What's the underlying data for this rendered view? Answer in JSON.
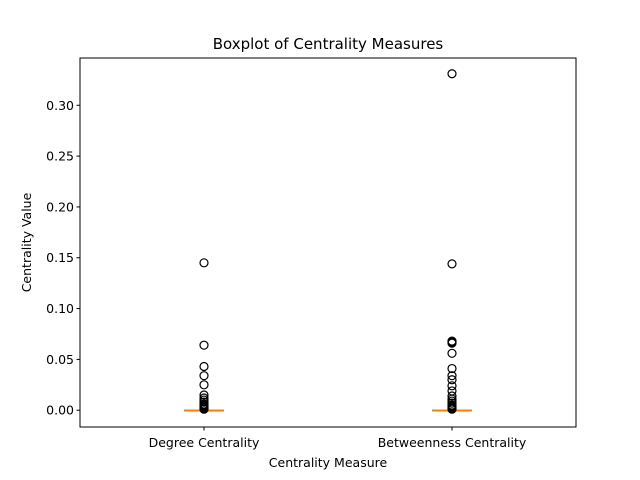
{
  "chart_data": {
    "type": "boxplot",
    "title": "Boxplot of Centrality Measures",
    "xlabel": "Centrality Measure",
    "ylabel": "Centrality Value",
    "ylim": [
      -0.0165,
      0.3465
    ],
    "yticks": [
      0.0,
      0.05,
      0.1,
      0.15,
      0.2,
      0.25,
      0.3
    ],
    "ytick_labels": [
      "0.00",
      "0.05",
      "0.10",
      "0.15",
      "0.20",
      "0.25",
      "0.30"
    ],
    "grid": false,
    "categories": [
      "Degree Centrality",
      "Betweenness Centrality"
    ],
    "boxes": [
      {
        "name": "Degree Centrality",
        "q1": 0.0,
        "median": 0.0,
        "q3": 0.0,
        "whisker_low": 0.0,
        "whisker_high": 0.0,
        "outliers": [
          0.145,
          0.064,
          0.043,
          0.034,
          0.025,
          0.015,
          0.012,
          0.01,
          0.008,
          0.006,
          0.005,
          0.004,
          0.003,
          0.002,
          0.001
        ]
      },
      {
        "name": "Betweenness Centrality",
        "q1": 0.0,
        "median": 0.0,
        "q3": 0.0,
        "whisker_low": 0.0,
        "whisker_high": 0.0,
        "outliers": [
          0.331,
          0.144,
          0.068,
          0.067,
          0.066,
          0.056,
          0.041,
          0.034,
          0.03,
          0.024,
          0.019,
          0.014,
          0.011,
          0.009,
          0.007,
          0.005,
          0.004,
          0.003,
          0.002,
          0.001
        ]
      }
    ],
    "colors": {
      "box": "#000000",
      "median": "#ff7f0e",
      "outlier": "#000000"
    }
  }
}
